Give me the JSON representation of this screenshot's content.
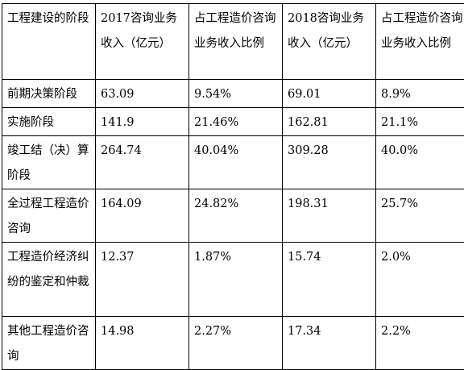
{
  "table": {
    "header": [
      "工程建设的阶段",
      "2017咨询业务收入（亿元）",
      "占工程造价咨询业务收入比例",
      "2018咨询业务收入（亿元）",
      "占工程造价咨询业务收入比例"
    ],
    "rows": [
      [
        "前期决策阶段",
        "63.09",
        "9.54%",
        "69.01",
        "8.9%"
      ],
      [
        "实施阶段",
        "141.9",
        "21.46%",
        "162.81",
        "21.1%"
      ],
      [
        "竣工结（决）算阶段",
        "264.74",
        "40.04%",
        "309.28",
        "40.0%"
      ],
      [
        "全过程工程造价咨询",
        "164.09",
        "24.82%",
        "198.31",
        "25.7%"
      ],
      [
        "工程造价经济纠纷的鉴定和仲裁",
        "12.37",
        "1.87%",
        "15.74",
        "2.0%"
      ],
      [
        "其他工程造价咨询",
        "14.98",
        "2.27%",
        "17.34",
        "2.2%"
      ]
    ]
  }
}
